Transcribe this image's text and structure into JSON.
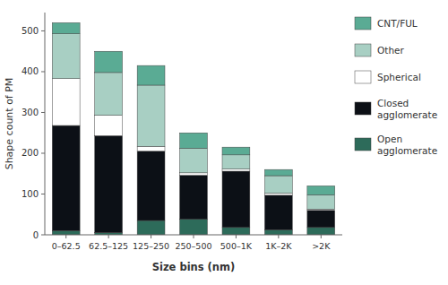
{
  "chart_data": {
    "type": "bar",
    "stacked": true,
    "categories": [
      "0–62.5",
      "62.5–125",
      "125–250",
      "250–500",
      "500–1K",
      "1K–2K",
      ">2K"
    ],
    "series": [
      {
        "name": "Open\nagglomerate",
        "color": "#2d6b5a",
        "values": [
          10,
          5,
          35,
          38,
          18,
          12,
          18
        ]
      },
      {
        "name": "Closed\nagglomerate",
        "color": "#0c1016",
        "values": [
          258,
          238,
          170,
          108,
          138,
          85,
          42
        ]
      },
      {
        "name": "Spherical",
        "color": "#ffffff",
        "values": [
          115,
          50,
          12,
          6,
          5,
          5,
          3
        ]
      },
      {
        "name": "Other",
        "color": "#a8cfc3",
        "values": [
          110,
          105,
          150,
          60,
          35,
          43,
          35
        ]
      },
      {
        "name": "CNT/FUL",
        "color": "#5aab94",
        "values": [
          27,
          52,
          48,
          38,
          19,
          15,
          22
        ]
      }
    ],
    "ylabel": "Shape count of PM",
    "xlabel": "Size bins (nm)",
    "ylim": [
      0,
      545
    ],
    "yticks": [
      0,
      100,
      200,
      300,
      400,
      500
    ],
    "grid": false,
    "legend": "right"
  }
}
